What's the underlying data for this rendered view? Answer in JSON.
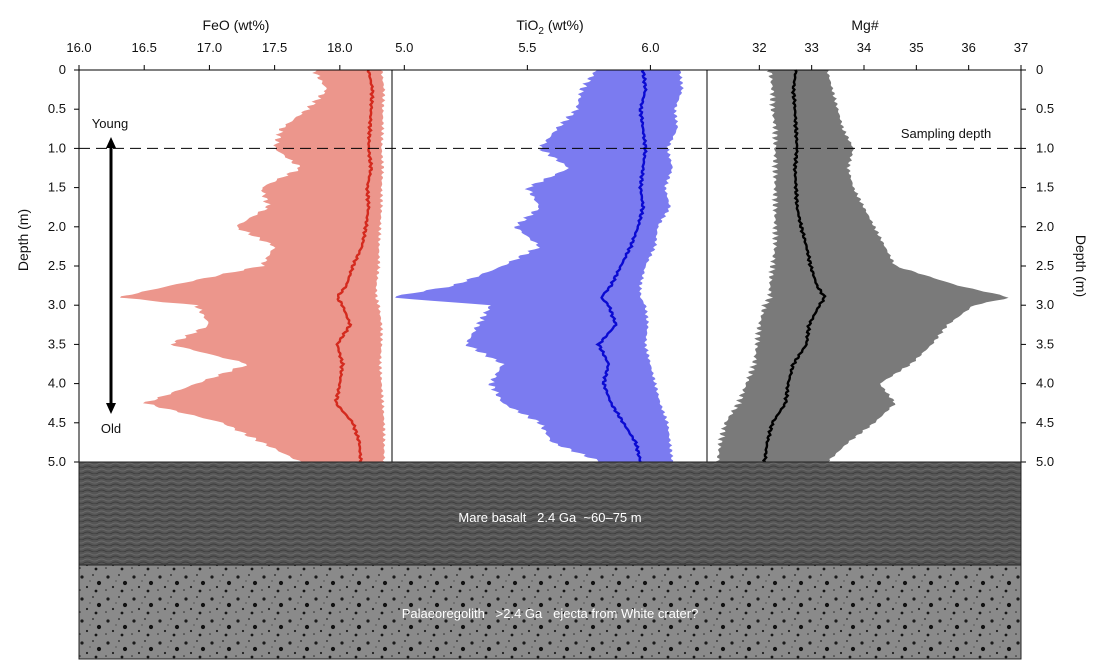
{
  "chart_data": {
    "type": "area",
    "depth_axis": {
      "label": "Depth (m)",
      "range": [
        0,
        5
      ],
      "ticks": [
        "0",
        "0.5",
        "1.0",
        "1.5",
        "2.0",
        "2.5",
        "3.0",
        "3.5",
        "4.0",
        "4.5",
        "5.0"
      ]
    },
    "panels": [
      {
        "title": "FeO (wt%)",
        "title_main": "FeO (wt%)",
        "xlim": [
          16.0,
          18.4
        ],
        "x_ticks": [
          "16.0",
          "16.5",
          "17.0",
          "17.5",
          "18.0"
        ],
        "x_tick_values": [
          16.0,
          16.5,
          17.0,
          17.5,
          18.0
        ],
        "line_color": "#d42a1e",
        "fill_color": "#ec968c",
        "series": {
          "name": "FeO",
          "depth": [
            0,
            0.25,
            0.5,
            0.75,
            1.0,
            1.25,
            1.5,
            1.75,
            2.0,
            2.25,
            2.5,
            2.75,
            2.9,
            3.0,
            3.25,
            3.5,
            3.75,
            4.0,
            4.25,
            4.5,
            4.75,
            5.0
          ],
          "mean": [
            18.22,
            18.25,
            18.24,
            18.23,
            18.22,
            18.24,
            18.21,
            18.22,
            18.2,
            18.17,
            18.1,
            18.05,
            17.98,
            18.02,
            18.08,
            17.98,
            18.02,
            18.0,
            17.97,
            18.1,
            18.15,
            18.16
          ],
          "lower": [
            17.8,
            17.9,
            17.75,
            17.55,
            17.5,
            17.7,
            17.4,
            17.45,
            17.2,
            17.5,
            17.4,
            16.7,
            16.3,
            16.9,
            17.0,
            16.7,
            17.3,
            16.9,
            16.5,
            17.1,
            17.4,
            17.7
          ],
          "upper": [
            18.32,
            18.34,
            18.33,
            18.33,
            18.32,
            18.33,
            18.32,
            18.32,
            18.31,
            18.3,
            18.3,
            18.28,
            18.28,
            18.3,
            18.32,
            18.32,
            18.31,
            18.32,
            18.33,
            18.34,
            18.34,
            18.34
          ]
        }
      },
      {
        "title": "TiO2 (wt%)",
        "title_main": "TiO",
        "title_sub": "2",
        "title_tail": " (wt%)",
        "xlim": [
          4.95,
          6.23
        ],
        "x_ticks": [
          "5.0",
          "5.5",
          "6.0"
        ],
        "x_tick_values": [
          5.0,
          5.5,
          6.0
        ],
        "line_color": "#0a0ad2",
        "fill_color": "#7b7bf0",
        "series": {
          "name": "TiO2",
          "depth": [
            0,
            0.25,
            0.5,
            0.75,
            1.0,
            1.25,
            1.5,
            1.75,
            2.0,
            2.25,
            2.5,
            2.75,
            2.9,
            3.0,
            3.25,
            3.5,
            3.75,
            4.0,
            4.25,
            4.5,
            4.75,
            5.0
          ],
          "mean": [
            5.97,
            5.98,
            5.96,
            5.97,
            5.98,
            5.97,
            5.96,
            5.97,
            5.95,
            5.92,
            5.88,
            5.84,
            5.8,
            5.83,
            5.86,
            5.79,
            5.83,
            5.81,
            5.84,
            5.89,
            5.94,
            5.96
          ],
          "lower": [
            5.78,
            5.72,
            5.7,
            5.62,
            5.55,
            5.67,
            5.5,
            5.55,
            5.45,
            5.55,
            5.4,
            5.2,
            4.94,
            5.35,
            5.3,
            5.25,
            5.4,
            5.35,
            5.4,
            5.55,
            5.6,
            5.8
          ],
          "upper": [
            6.12,
            6.13,
            6.1,
            6.11,
            6.07,
            6.09,
            6.06,
            6.08,
            6.03,
            6.02,
            5.98,
            5.96,
            5.96,
            5.98,
            5.99,
            5.98,
            6.0,
            6.02,
            6.04,
            6.07,
            6.08,
            6.09
          ]
        }
      },
      {
        "title": "Mg#",
        "title_main": "Mg#",
        "xlim": [
          31.0,
          37.0
        ],
        "x_ticks": [
          "32",
          "33",
          "34",
          "35",
          "36",
          "37"
        ],
        "x_tick_values": [
          32,
          33,
          34,
          35,
          36,
          37
        ],
        "line_color": "#000000",
        "fill_color": "#7a7a7a",
        "series": {
          "name": "Mg#",
          "depth": [
            0,
            0.25,
            0.5,
            0.75,
            1.0,
            1.25,
            1.5,
            1.75,
            2.0,
            2.25,
            2.5,
            2.75,
            2.9,
            3.0,
            3.25,
            3.5,
            3.75,
            4.0,
            4.25,
            4.5,
            4.75,
            5.0
          ],
          "mean": [
            32.7,
            32.65,
            32.68,
            32.7,
            32.72,
            32.68,
            32.7,
            32.72,
            32.8,
            32.9,
            32.98,
            33.1,
            33.25,
            33.15,
            32.95,
            32.9,
            32.65,
            32.55,
            32.5,
            32.25,
            32.15,
            32.1
          ],
          "lower": [
            32.2,
            32.25,
            32.25,
            32.3,
            32.3,
            32.3,
            32.3,
            32.3,
            32.3,
            32.3,
            32.25,
            32.2,
            32.2,
            32.1,
            32.0,
            31.95,
            31.9,
            31.75,
            31.6,
            31.35,
            31.25,
            31.2
          ],
          "upper": [
            33.3,
            33.4,
            33.5,
            33.6,
            33.8,
            33.7,
            33.8,
            34.0,
            34.2,
            34.4,
            34.6,
            35.8,
            36.8,
            36.1,
            35.6,
            35.3,
            34.9,
            34.3,
            34.6,
            34.2,
            33.7,
            33.3
          ]
        }
      }
    ],
    "annotations": {
      "young": "Young",
      "old": "Old",
      "sampling_depth": "Sampling depth",
      "sampling_depth_value": 1.0
    },
    "layers": [
      {
        "label": "Mare basalt   2.4 Ga  ~60–75 m",
        "kind": "basalt"
      },
      {
        "label": "Palaeoregolith   >2.4 Ga   ejecta from White crater?",
        "kind": "regolith"
      }
    ]
  }
}
